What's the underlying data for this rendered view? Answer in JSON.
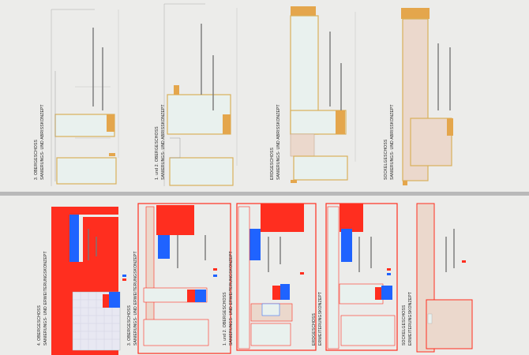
{
  "sheets": {
    "top": {
      "panels": [
        {
          "title": "3. OBERGESCHOSS",
          "subtitle": "SANIERUNGS- UND ABRISSKONZEPT"
        },
        {
          "title": "1. und 2. OBERGESCHOSS",
          "subtitle": "SANIERUNGS- UND ABRISSKONZEPT"
        },
        {
          "title": "ERDGESCHOSS",
          "subtitle": "SANIERUNGS- UND ABRISSKONZEPT"
        },
        {
          "title": "SOCKELGESCHOSS",
          "subtitle": "SANIERUNGS- UND ABRISSKONZEPT"
        }
      ]
    },
    "bottom": {
      "panels": [
        {
          "title": "4. OBERGESCHOSS",
          "subtitle": "SANIERUNGS- UND ERWEITERUNGSKONZEPT"
        },
        {
          "title": "3. OBERGESCHOSS",
          "subtitle": "SANIERUNGS- UND ERWEITERUNGSKONZEPT"
        },
        {
          "title": "1. und 2. OBERGESCHOSS",
          "subtitle": "SANIERUNGS- UND ERWEITERUNGSKONZEPT"
        },
        {
          "title": "ERDGESCHOSS",
          "subtitle": "ERWEITERUNGSKONZEPT"
        },
        {
          "title": "SOCKELGESCHOSS",
          "subtitle": "ERWEITERUNGSKONZEPT"
        }
      ]
    }
  },
  "colors": {
    "background": "#b9b9b9",
    "sheet": "#ececea",
    "demolition": "#e4a64c",
    "extension": "#ff2e1f",
    "new_blue": "#1f63ff",
    "existing_fill": "#e9f1ee",
    "existing_outline": "#d9b05a",
    "hatch": "#ebd8cc",
    "grid_fill": "#e8e8f2"
  }
}
